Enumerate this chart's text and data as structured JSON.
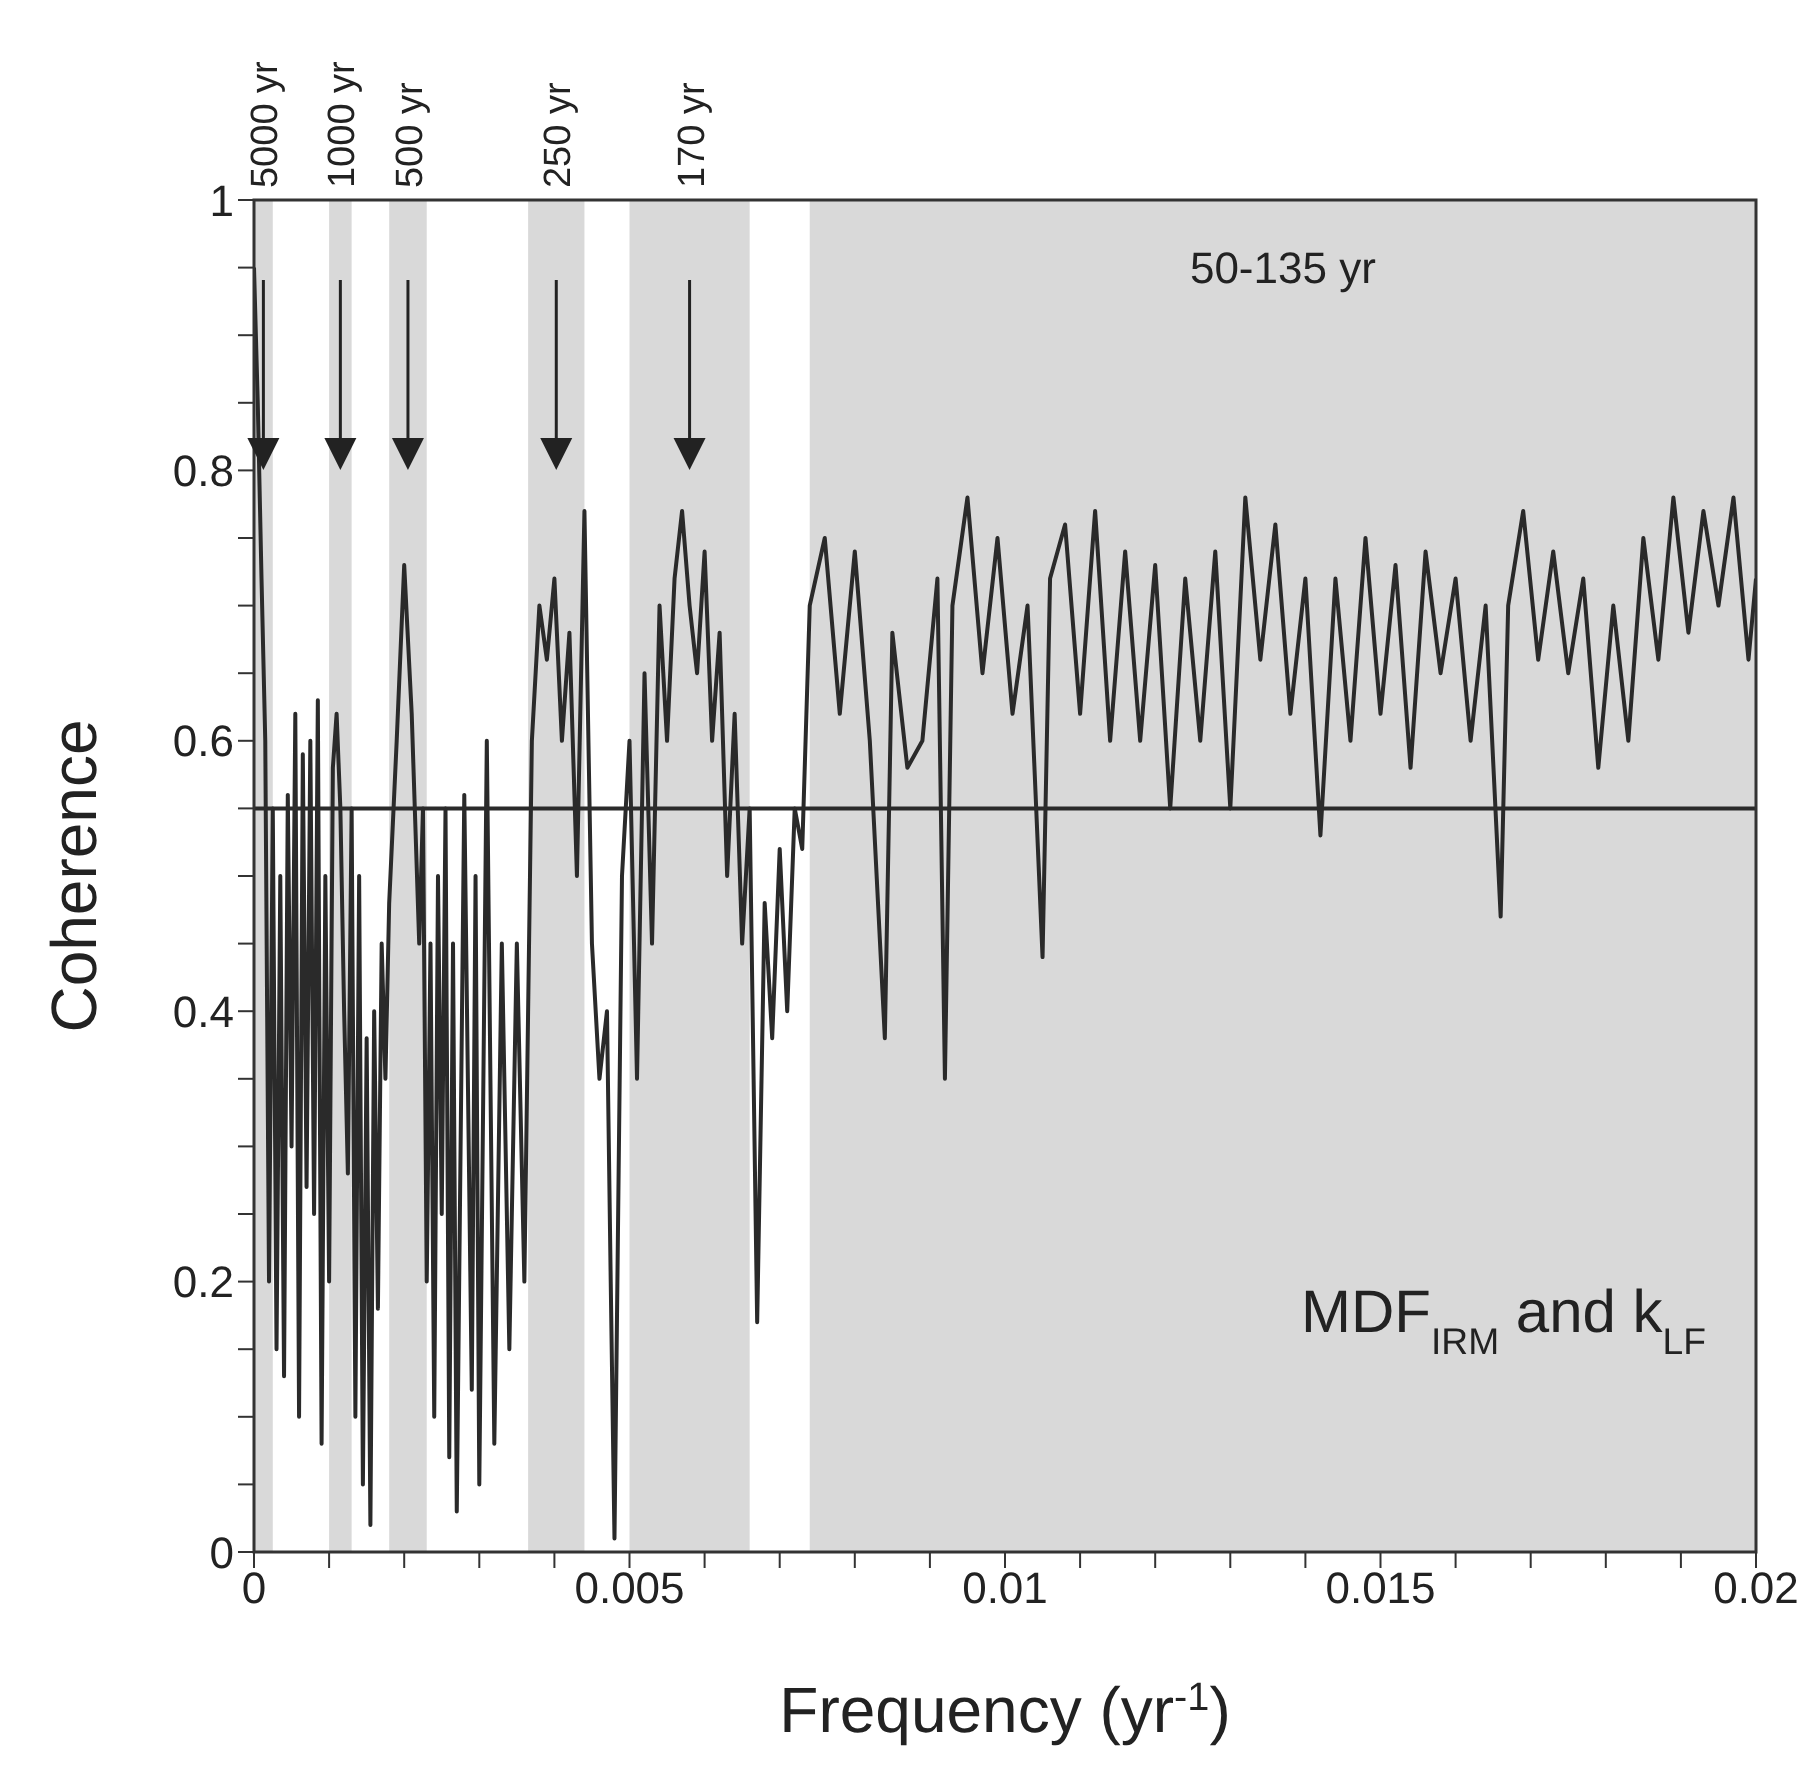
{
  "chart_data": {
    "type": "line",
    "xlabel": "Frequency (yr$^{-1}$)",
    "ylabel": "Coherence",
    "x": [
      0,
      5e-05,
      0.0001,
      0.00015,
      0.0002,
      0.00025,
      0.0003,
      0.00035,
      0.0004,
      0.00045,
      0.0005,
      0.00055,
      0.0006,
      0.00065,
      0.0007,
      0.00075,
      0.0008,
      0.00085,
      0.0009,
      0.00095,
      0.001,
      0.00105,
      0.0011,
      0.00115,
      0.0012,
      0.00125,
      0.0013,
      0.00135,
      0.0014,
      0.00145,
      0.0015,
      0.00155,
      0.0016,
      0.00165,
      0.0017,
      0.00175,
      0.0018,
      0.0019,
      0.002,
      0.0021,
      0.0022,
      0.00225,
      0.0023,
      0.00235,
      0.0024,
      0.00245,
      0.0025,
      0.00255,
      0.0026,
      0.00265,
      0.0027,
      0.0028,
      0.0029,
      0.00295,
      0.003,
      0.0031,
      0.0032,
      0.0033,
      0.0034,
      0.0035,
      0.0036,
      0.0037,
      0.0038,
      0.0039,
      0.004,
      0.0041,
      0.0042,
      0.0043,
      0.0044,
      0.0045,
      0.0046,
      0.0047,
      0.00475,
      0.0048,
      0.0049,
      0.005,
      0.0051,
      0.0052,
      0.0053,
      0.0054,
      0.0055,
      0.0056,
      0.0057,
      0.0058,
      0.0059,
      0.006,
      0.0061,
      0.0062,
      0.0063,
      0.0064,
      0.0065,
      0.0066,
      0.0067,
      0.0068,
      0.0069,
      0.007,
      0.0071,
      0.0072,
      0.0073,
      0.0074,
      0.0076,
      0.0078,
      0.008,
      0.0082,
      0.0084,
      0.0085,
      0.0087,
      0.0089,
      0.0091,
      0.0092,
      0.0093,
      0.0095,
      0.0097,
      0.0099,
      0.0101,
      0.0103,
      0.0105,
      0.0106,
      0.0108,
      0.011,
      0.0112,
      0.0114,
      0.0116,
      0.0118,
      0.012,
      0.0122,
      0.0124,
      0.0126,
      0.0128,
      0.013,
      0.0132,
      0.0134,
      0.0136,
      0.0138,
      0.014,
      0.0142,
      0.0144,
      0.0146,
      0.0148,
      0.015,
      0.0152,
      0.0154,
      0.0156,
      0.0158,
      0.016,
      0.0162,
      0.0164,
      0.0166,
      0.0167,
      0.0169,
      0.0171,
      0.0173,
      0.0175,
      0.0177,
      0.0179,
      0.0181,
      0.0183,
      0.0185,
      0.0187,
      0.0189,
      0.0191,
      0.0193,
      0.0195,
      0.0197,
      0.0199,
      0.02
    ],
    "series": [
      {
        "color": "#2a2a2a",
        "values": [
          0.95,
          0.85,
          0.72,
          0.6,
          0.2,
          0.55,
          0.15,
          0.5,
          0.13,
          0.56,
          0.3,
          0.62,
          0.1,
          0.59,
          0.27,
          0.6,
          0.25,
          0.63,
          0.08,
          0.5,
          0.2,
          0.58,
          0.62,
          0.55,
          0.4,
          0.28,
          0.55,
          0.1,
          0.5,
          0.05,
          0.38,
          0.02,
          0.4,
          0.18,
          0.45,
          0.35,
          0.48,
          0.6,
          0.73,
          0.62,
          0.45,
          0.55,
          0.2,
          0.45,
          0.1,
          0.5,
          0.25,
          0.55,
          0.07,
          0.45,
          0.03,
          0.56,
          0.12,
          0.5,
          0.05,
          0.6,
          0.08,
          0.45,
          0.15,
          0.45,
          0.2,
          0.6,
          0.7,
          0.66,
          0.72,
          0.6,
          0.68,
          0.5,
          0.77,
          0.45,
          0.35,
          0.4,
          0.2,
          0.01,
          0.5,
          0.6,
          0.35,
          0.65,
          0.45,
          0.7,
          0.6,
          0.72,
          0.77,
          0.7,
          0.65,
          0.74,
          0.6,
          0.68,
          0.5,
          0.62,
          0.45,
          0.55,
          0.17,
          0.48,
          0.38,
          0.52,
          0.4,
          0.55,
          0.52,
          0.7,
          0.75,
          0.62,
          0.74,
          0.6,
          0.38,
          0.68,
          0.58,
          0.6,
          0.72,
          0.35,
          0.7,
          0.78,
          0.65,
          0.75,
          0.62,
          0.7,
          0.44,
          0.72,
          0.76,
          0.62,
          0.77,
          0.6,
          0.74,
          0.6,
          0.73,
          0.55,
          0.72,
          0.6,
          0.74,
          0.55,
          0.78,
          0.66,
          0.76,
          0.62,
          0.72,
          0.53,
          0.72,
          0.6,
          0.75,
          0.62,
          0.73,
          0.58,
          0.74,
          0.65,
          0.72,
          0.6,
          0.7,
          0.47,
          0.7,
          0.77,
          0.66,
          0.74,
          0.65,
          0.72,
          0.58,
          0.7,
          0.6,
          0.75,
          0.66,
          0.78,
          0.68,
          0.77,
          0.7,
          0.78,
          0.66,
          0.72
        ]
      }
    ],
    "xlim": [
      0,
      0.02
    ],
    "xticks": [
      0,
      {
        "value": 0.001,
        "label": null
      },
      {
        "value": 0.002,
        "label": null
      },
      {
        "value": 0.003,
        "label": null
      },
      {
        "value": 0.004,
        "label": null
      },
      0.005,
      {
        "value": 0.006,
        "label": null
      },
      {
        "value": 0.007,
        "label": null
      },
      {
        "value": 0.008,
        "label": null
      },
      {
        "value": 0.009,
        "label": null
      },
      0.01,
      {
        "value": 0.011,
        "label": null
      },
      {
        "value": 0.012,
        "label": null
      },
      {
        "value": 0.013,
        "label": null
      },
      {
        "value": 0.014,
        "label": null
      },
      0.015,
      {
        "value": 0.016,
        "label": null
      },
      {
        "value": 0.017,
        "label": null
      },
      {
        "value": 0.018,
        "label": null
      },
      {
        "value": 0.019,
        "label": null
      },
      0.02
    ],
    "ylim": [
      0,
      1
    ],
    "yticks": [
      0,
      {
        "value": 0.05,
        "label": null
      },
      {
        "value": 0.1,
        "label": null
      },
      {
        "value": 0.15,
        "label": null
      },
      0.2,
      {
        "value": 0.25,
        "label": null
      },
      {
        "value": 0.3,
        "label": null
      },
      {
        "value": 0.35,
        "label": null
      },
      0.4,
      {
        "value": 0.45,
        "label": null
      },
      {
        "value": 0.5,
        "label": null
      },
      {
        "value": 0.55,
        "label": null
      },
      0.6,
      {
        "value": 0.65,
        "label": null
      },
      {
        "value": 0.7,
        "label": null
      },
      {
        "value": 0.75,
        "label": null
      },
      0.8,
      {
        "value": 0.85,
        "label": null
      },
      {
        "value": 0.9,
        "label": null
      },
      {
        "value": 0.95,
        "label": null
      },
      1
    ],
    "ref_lines": [
      {
        "axis": "y",
        "value": 0.55,
        "color": "#2a2a2a"
      }
    ],
    "bands": [
      {
        "axis": "x",
        "from": 0,
        "to": 0.00025,
        "color": "#d9d9d9"
      },
      {
        "axis": "x",
        "from": 0.001,
        "to": 0.0013,
        "color": "#d9d9d9"
      },
      {
        "axis": "x",
        "from": 0.0018,
        "to": 0.0023,
        "color": "#d9d9d9"
      },
      {
        "axis": "x",
        "from": 0.00365,
        "to": 0.0044,
        "color": "#d9d9d9"
      },
      {
        "axis": "x",
        "from": 0.005,
        "to": 0.0066,
        "color": "#d9d9d9"
      },
      {
        "axis": "x",
        "from": 0.0074,
        "to": 0.02,
        "label": "50-135 yr",
        "color": "#d9d9d9"
      }
    ],
    "annotations": [
      "5000 yr",
      "1000 yr",
      "500 yr",
      "250 yr",
      "170 yr",
      "MDF$_{IRM}$ and k$_{LF}$"
    ]
  }
}
